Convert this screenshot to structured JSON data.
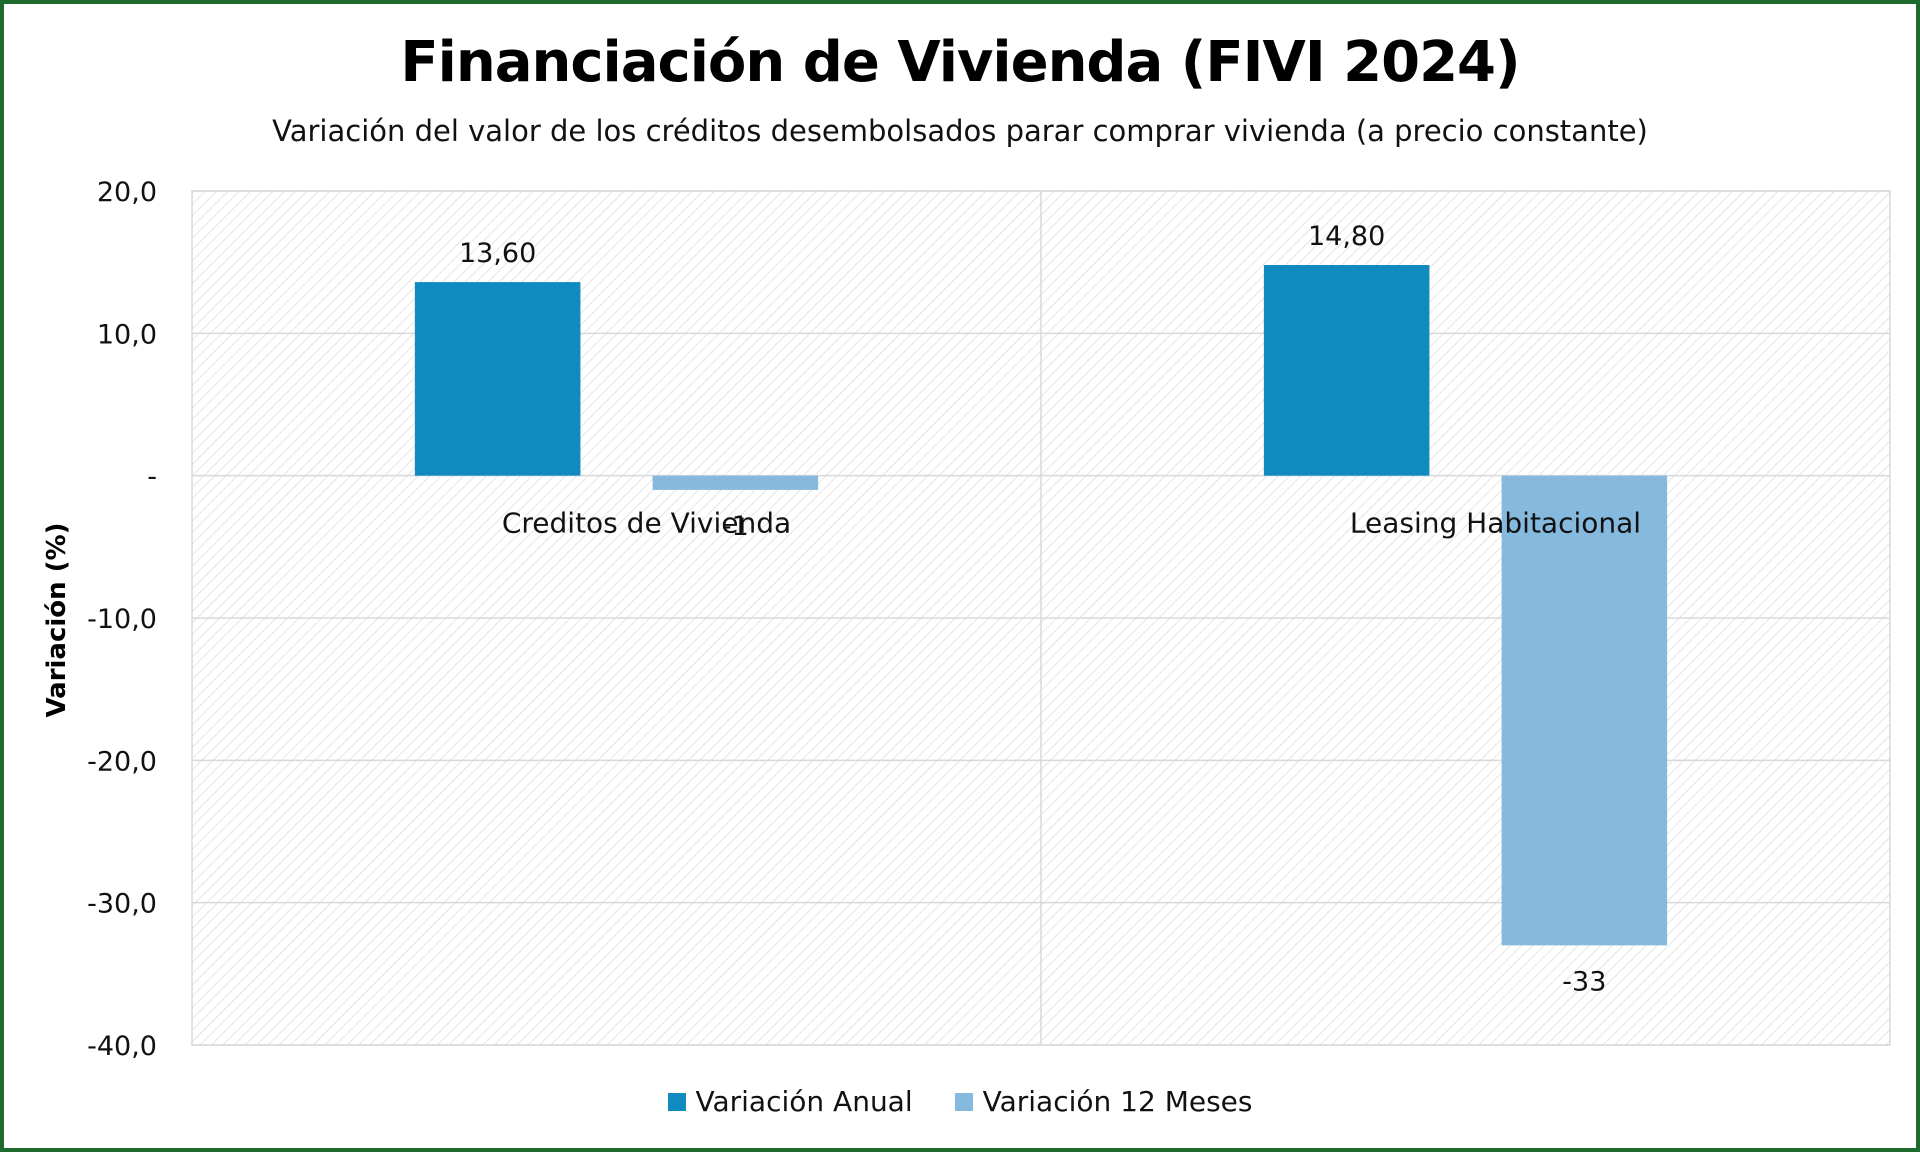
{
  "chart_data": {
    "type": "bar",
    "title": "Financiación de Vivienda (FIVI 2024)",
    "subtitle": "Variación del valor de los créditos desembolsados parar comprar vivienda (a precio constante)",
    "xlabel": "",
    "ylabel": "Variación (%)",
    "ylim": [
      -40,
      20
    ],
    "yticks": [
      20,
      10,
      0,
      -10,
      -20,
      -30,
      -40
    ],
    "ytick_labels": [
      "20,0",
      "10,0",
      "-",
      "-10,0",
      "-20,0",
      "-30,0",
      "-40,0"
    ],
    "categories": [
      "Creditos de Vivienda",
      "Leasing Habitacional"
    ],
    "series": [
      {
        "name": "Variación Anual",
        "color": "#118abf",
        "values": [
          13.6,
          14.8
        ],
        "labels": [
          "13,60",
          "14,80"
        ]
      },
      {
        "name": "Variación 12 Meses",
        "color": "#85b9de",
        "values": [
          -1,
          -33
        ],
        "labels": [
          "-1",
          "-33"
        ]
      }
    ],
    "grid": true,
    "legend_position": "bottom"
  }
}
